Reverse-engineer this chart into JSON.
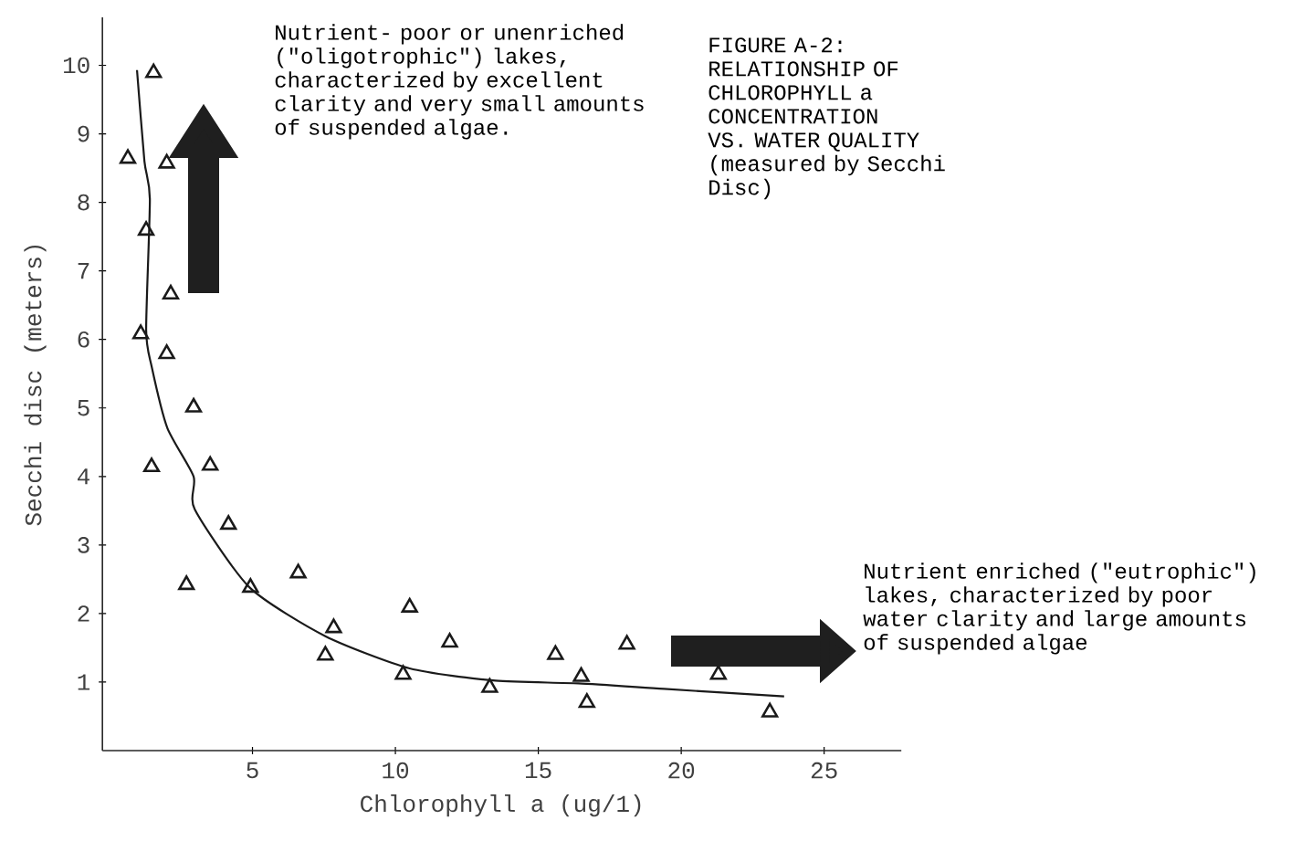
{
  "chart_data": {
    "type": "scatter",
    "title": "FIGURE A-2: RELATIONSHIP OF CHLOROPHYLL a CONCENTRATION VS. WATER QUALITY (measured by Secchi Disc)",
    "xlabel": "Chlorophyll a (ug/1)",
    "ylabel": "Secchi disc (meters)",
    "annotations": [
      "Nutrient- poor or unenriched (\"oligotrophic\") lakes, characterized by excellent clarity and very small amounts of suspended algae.",
      "Nutrient enriched (\"eutrophic\") lakes, characterized by poor water clarity and large amounts of suspended algae"
    ],
    "xlim": [
      -0.25,
      27.7
    ],
    "ylim": [
      0,
      10.7
    ],
    "xticks": [
      5,
      10,
      15,
      20,
      25
    ],
    "yticks": [
      1,
      2,
      3,
      4,
      5,
      6,
      7,
      8,
      9,
      10
    ],
    "marker": "triangle",
    "series": [
      {
        "color": "#1a1a1a",
        "x": [
          1.54,
          0.64,
          2.0,
          1.28,
          2.14,
          1.09,
          2.0,
          2.94,
          1.47,
          3.52,
          4.16,
          2.69,
          4.93,
          6.6,
          7.84,
          7.55,
          10.5,
          10.27,
          11.9,
          13.3,
          15.6,
          16.5,
          16.7,
          18.1,
          21.3,
          23.1
        ],
        "values": [
          9.89,
          8.64,
          8.57,
          7.59,
          6.66,
          6.08,
          5.79,
          5.01,
          4.14,
          4.16,
          3.3,
          2.42,
          2.38,
          2.59,
          1.79,
          1.39,
          2.09,
          1.11,
          1.58,
          0.92,
          1.4,
          1.08,
          0.7,
          1.55,
          1.11,
          0.56
        ]
      },
      {
        "type": "line",
        "color": "#1a1a1a",
        "marker": "none",
        "x": [
          0.96,
          1.22,
          1.41,
          1.28,
          1.47,
          2.02,
          2.94,
          2.98,
          4.9,
          7.55,
          10.5,
          13.5,
          16.4,
          19.4,
          23.6
        ],
        "values": [
          9.93,
          8.6,
          8.05,
          6.14,
          5.61,
          4.71,
          4.0,
          3.52,
          2.38,
          1.67,
          1.2,
          1.02,
          0.98,
          0.9,
          0.79
        ]
      }
    ]
  }
}
